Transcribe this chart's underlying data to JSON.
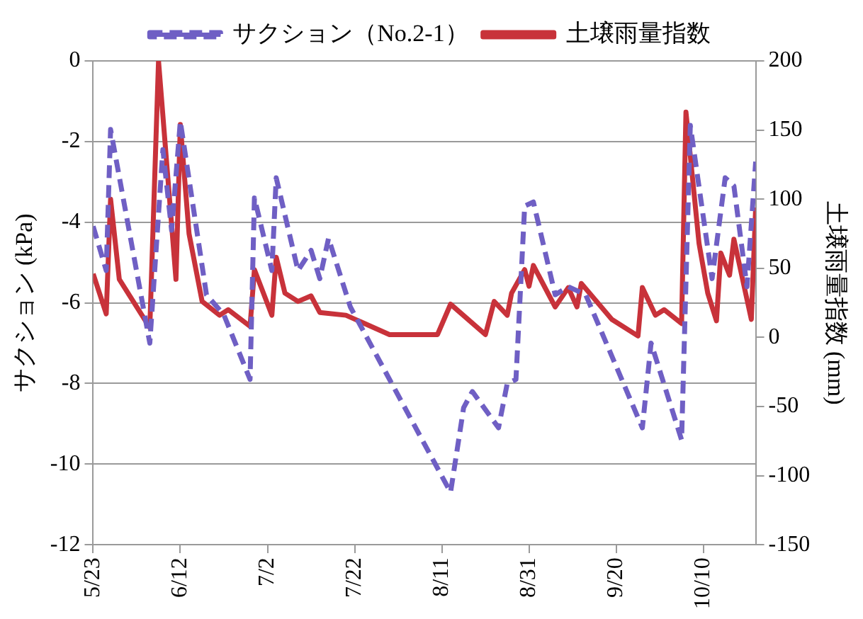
{
  "chart_data": {
    "type": "line",
    "ylabel": "サクション (kPa)",
    "y2label": "土壌雨量指数 (mm)",
    "x": [
      "--05-23",
      "--05-26",
      "--05-27",
      "--06-05",
      "--06-08",
      "--06-10",
      "--06-12",
      "--06-18",
      "--06-22",
      "--06-28",
      "--06-29",
      "--07-01",
      "--07-03",
      "--07-04",
      "--07-09",
      "--07-12",
      "--07-14",
      "--07-16",
      "--07-21",
      "--08-13",
      "--08-16",
      "--08-18",
      "--08-24",
      "--08-26",
      "--08-28",
      "--08-30",
      "--09-01",
      "--09-06",
      "--09-09",
      "--09-13",
      "--09-26",
      "--09-28",
      "--10-05",
      "--10-07",
      "--10-12",
      "--10-15",
      "--10-17",
      "--10-20",
      "--10-22"
    ],
    "series": [
      {
        "name": "サクション（No.2-1）",
        "color": "#6f5fc4",
        "line_style": "dashed",
        "values": [
          -4.1,
          -5.2,
          -1.7,
          -7.0,
          -2.2,
          -4.2,
          -1.5,
          -5.8,
          -6.3,
          -7.9,
          -3.4,
          -4.3,
          -5.2,
          -2.9,
          -5.2,
          -4.7,
          -5.4,
          -4.4,
          -6.1,
          -10.7,
          -8.6,
          -8.2,
          -9.1,
          -8.0,
          -7.9,
          -3.6,
          -3.5,
          -5.8,
          -5.6,
          -5.8,
          -9.1,
          -7.0,
          -9.4,
          -1.6,
          -5.4,
          -2.9,
          -3.1,
          -5.6,
          -2.5
        ]
      },
      {
        "name": "土壌雨量指数",
        "color": "#c8323a",
        "axis": "y2",
        "line_style": "solid",
        "x": [
          "--05-23",
          "--05-26",
          "--05-27",
          "--05-29",
          "--06-05",
          "--06-07",
          "--06-11",
          "--06-12",
          "--06-14",
          "--06-17",
          "--06-21",
          "--06-23",
          "--06-28",
          "--06-29",
          "--07-03",
          "--07-04",
          "--07-06",
          "--07-09",
          "--07-12",
          "--07-14",
          "--07-20",
          "--07-30",
          "--08-10",
          "--08-13",
          "--08-21",
          "--08-23",
          "--08-26",
          "--08-27",
          "--08-30",
          "--08-31",
          "--09-01",
          "--09-06",
          "--09-09",
          "--09-11",
          "--09-12",
          "--09-19",
          "--09-25",
          "--09-26",
          "--09-29",
          "--10-01",
          "--10-05",
          "--10-06",
          "--10-09",
          "--10-11",
          "--10-13",
          "--10-14",
          "--10-16",
          "--10-17",
          "--10-21",
          "--10-22"
        ],
        "values": [
          46,
          17,
          100,
          42,
          7,
          200,
          42,
          154,
          75,
          26,
          16,
          20,
          8,
          49,
          16,
          58,
          32,
          26,
          30,
          18,
          16,
          2,
          2,
          24,
          2,
          26,
          16,
          32,
          49,
          37,
          52,
          22,
          36,
          22,
          39,
          13,
          1,
          36,
          16,
          20,
          10,
          163,
          68,
          32,
          12,
          61,
          45,
          71,
          13,
          94
        ]
      }
    ],
    "xlim": [
      "--05-23",
      "--10-22"
    ],
    "xticks": [
      {
        "value": "--05-23",
        "label": "5/23"
      },
      {
        "value": "--06-12",
        "label": "6/12"
      },
      {
        "value": "--07-02",
        "label": "7/2"
      },
      {
        "value": "--07-22",
        "label": "7/22"
      },
      {
        "value": "--08-11",
        "label": "8/11"
      },
      {
        "value": "--08-31",
        "label": "8/31"
      },
      {
        "value": "--09-20",
        "label": "9/20"
      },
      {
        "value": "--10-10",
        "label": "10/10"
      }
    ],
    "ylim": [
      -12,
      0
    ],
    "yticks": [
      -12,
      -10,
      -8,
      -6,
      -4,
      -2,
      0
    ],
    "y2lim": [
      -150,
      200
    ],
    "y2ticks": [
      -150,
      -100,
      -50,
      0,
      50,
      100,
      150,
      200
    ],
    "grid": "y",
    "legend": "top",
    "marker": "none"
  }
}
